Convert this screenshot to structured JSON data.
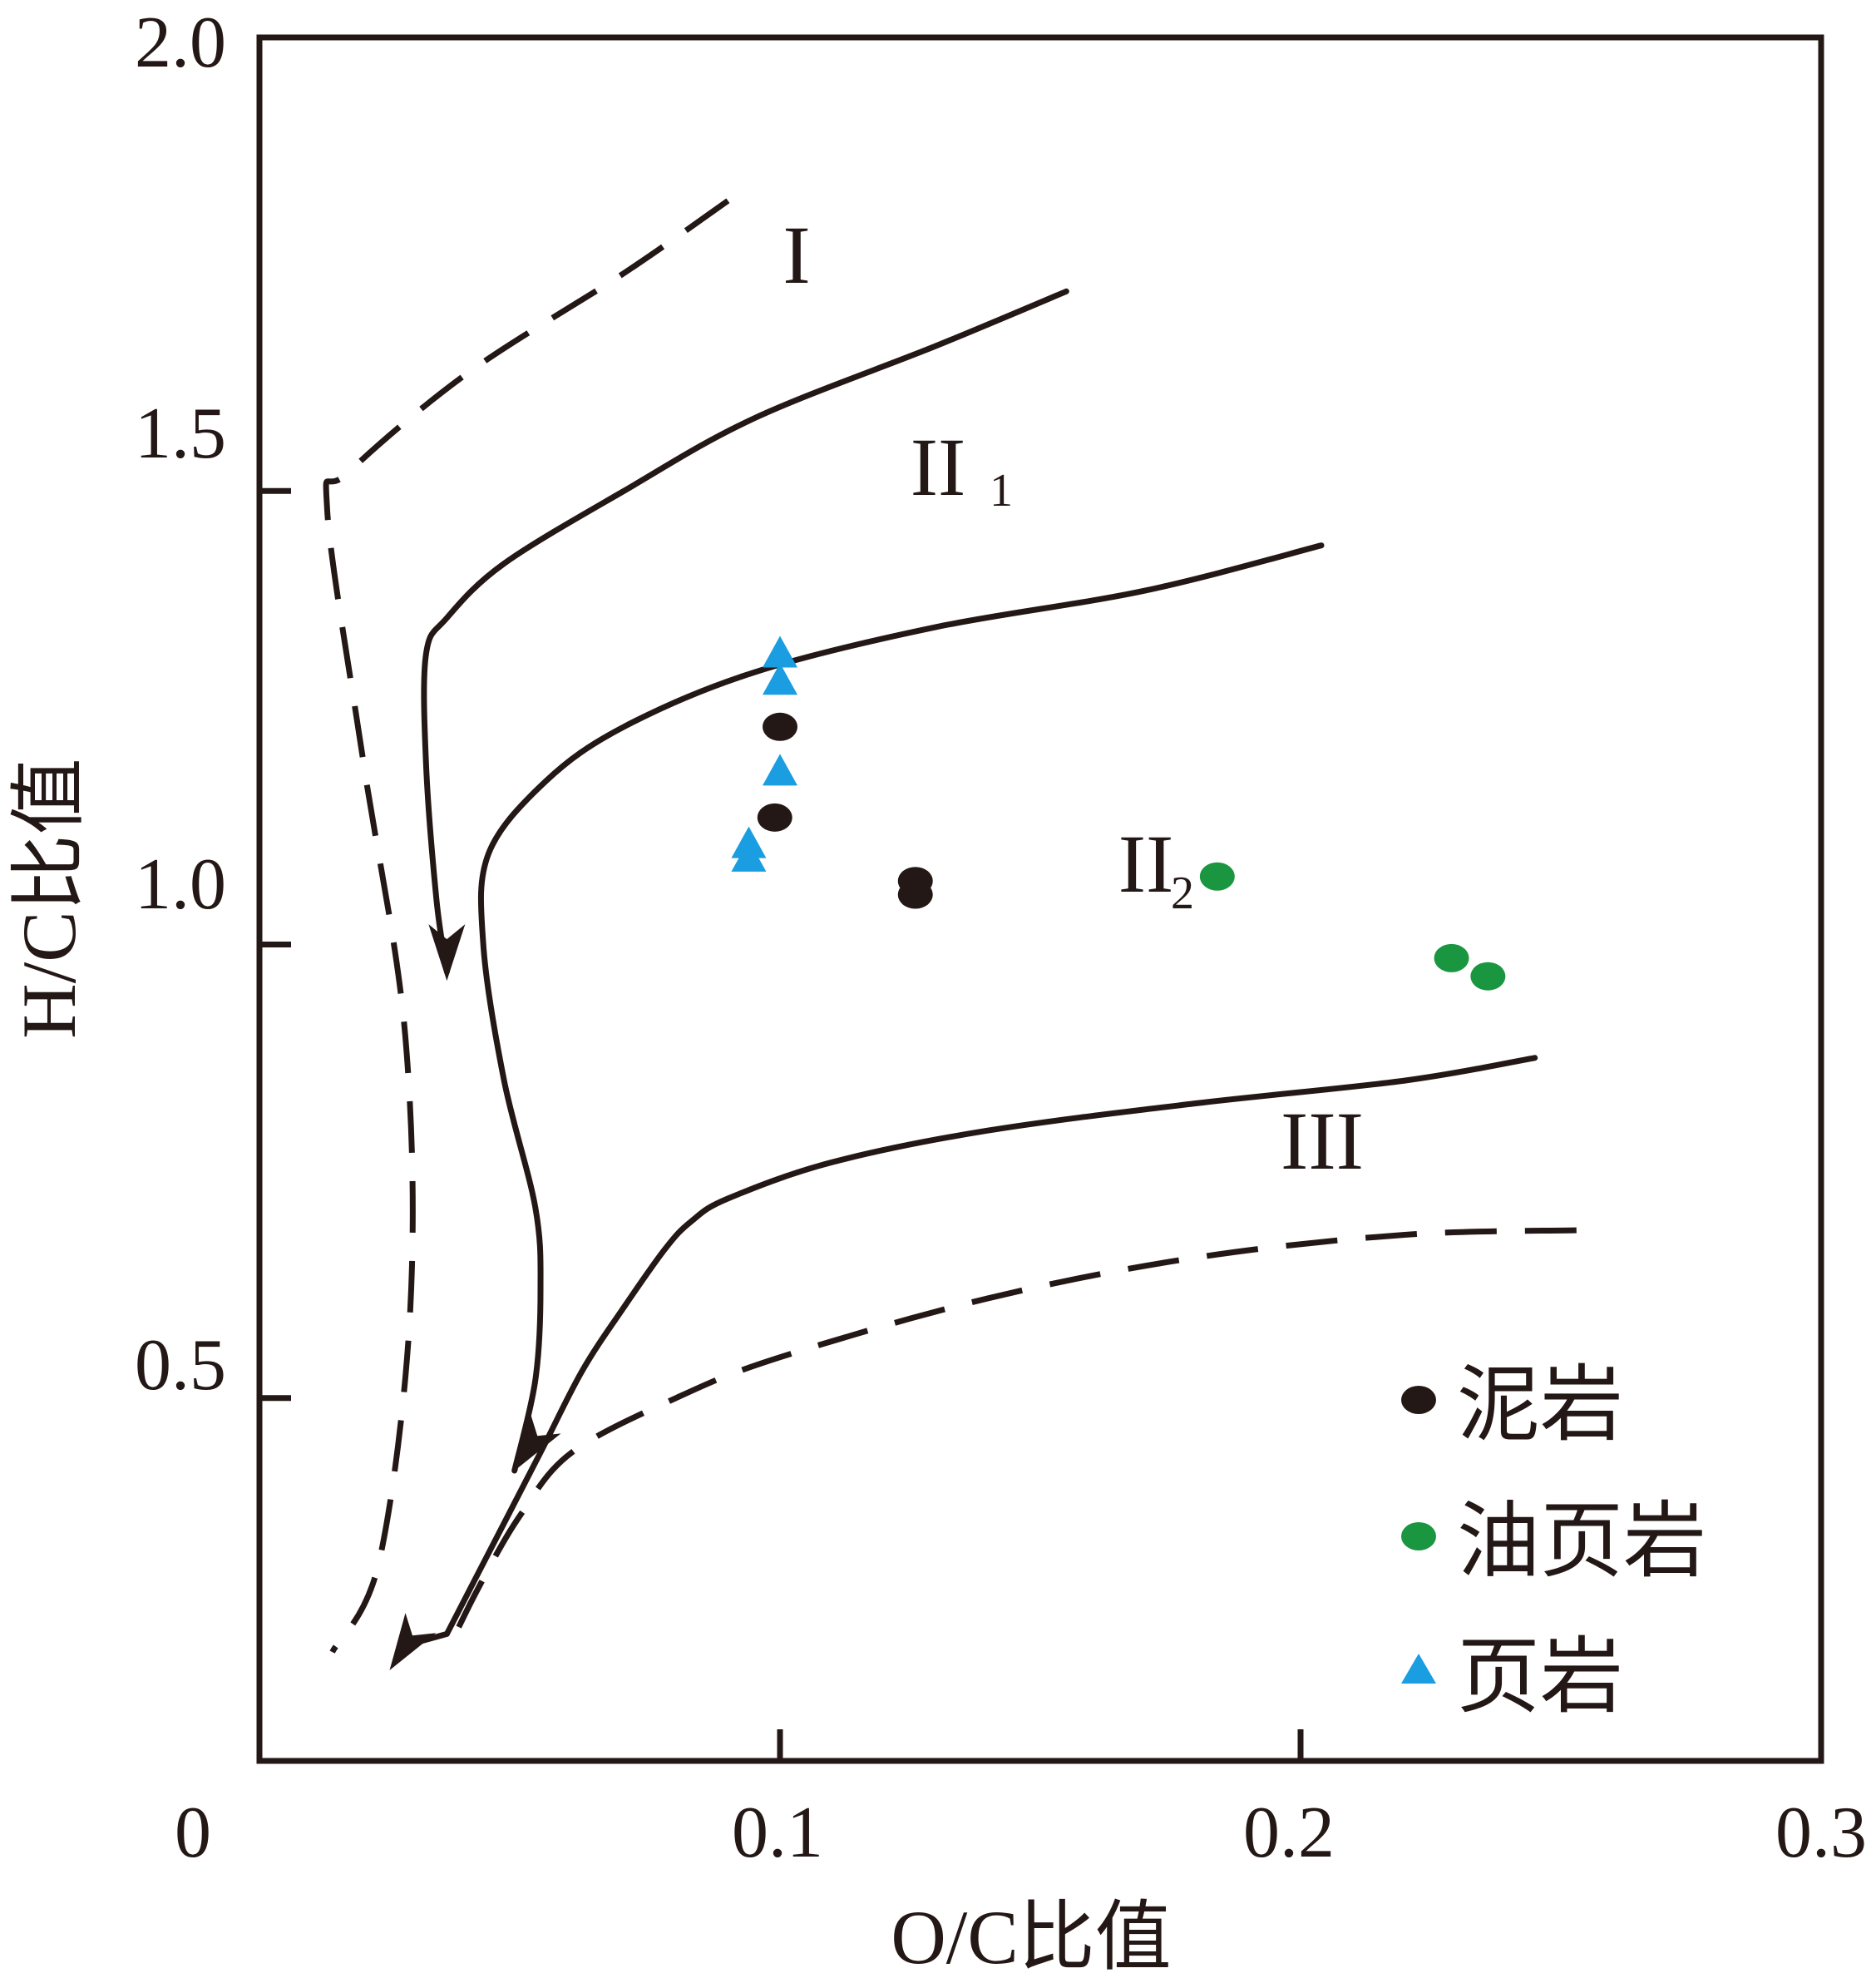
{
  "chart_data": {
    "type": "scatter",
    "xlabel": "O/C比值",
    "ylabel": "H/C比值",
    "xlim": [
      0,
      0.3
    ],
    "ylim": [
      0.1,
      2.0
    ],
    "x_ticks": [
      "0",
      "0.1",
      "0.2",
      "0.3"
    ],
    "y_ticks": [
      "0.5",
      "1.0",
      "1.5",
      "2.0"
    ],
    "region_labels": [
      {
        "name": "I",
        "sub": ""
      },
      {
        "name": "II",
        "sub": "1"
      },
      {
        "name": "II",
        "sub": "2"
      },
      {
        "name": "III",
        "sub": ""
      }
    ],
    "series": [
      {
        "name": "泥岩",
        "marker": "circle",
        "color": "#231815",
        "points": [
          [
            0.1,
            1.24
          ],
          [
            0.099,
            1.14
          ],
          [
            0.126,
            1.07
          ],
          [
            0.126,
            1.055
          ]
        ]
      },
      {
        "name": "油页岩",
        "marker": "circle",
        "color": "#1a9641",
        "points": [
          [
            0.184,
            1.075
          ],
          [
            0.229,
            0.985
          ],
          [
            0.236,
            0.965
          ]
        ]
      },
      {
        "name": "页岩",
        "marker": "triangle",
        "color": "#1a9de1",
        "points": [
          [
            0.1,
            1.32
          ],
          [
            0.1,
            1.29
          ],
          [
            0.1,
            1.19
          ],
          [
            0.094,
            1.11
          ],
          [
            0.094,
            1.095
          ]
        ]
      }
    ],
    "boundary_curves": [
      {
        "style": "dashed",
        "points": [
          [
            0.09,
            1.82
          ],
          [
            0.07,
            1.74
          ],
          [
            0.04,
            1.63
          ],
          [
            0.017,
            1.52
          ],
          [
            0.013,
            1.48
          ],
          [
            0.02,
            1.2
          ],
          [
            0.028,
            0.9
          ],
          [
            0.029,
            0.6
          ],
          [
            0.023,
            0.32
          ],
          [
            0.014,
            0.22
          ]
        ]
      },
      {
        "style": "solid",
        "points": [
          [
            0.155,
            1.72
          ],
          [
            0.13,
            1.66
          ],
          [
            0.095,
            1.58
          ],
          [
            0.07,
            1.5
          ],
          [
            0.047,
            1.42
          ],
          [
            0.036,
            1.36
          ],
          [
            0.032,
            1.32
          ],
          [
            0.032,
            1.2
          ],
          [
            0.034,
            1.05
          ],
          [
            0.036,
            0.97
          ]
        ]
      },
      {
        "style": "solid",
        "points": [
          [
            0.204,
            1.44
          ],
          [
            0.17,
            1.39
          ],
          [
            0.13,
            1.35
          ],
          [
            0.095,
            1.3
          ],
          [
            0.07,
            1.24
          ],
          [
            0.055,
            1.18
          ],
          [
            0.044,
            1.1
          ],
          [
            0.043,
            1.0
          ],
          [
            0.047,
            0.85
          ],
          [
            0.053,
            0.71
          ],
          [
            0.054,
            0.62
          ],
          [
            0.053,
            0.52
          ],
          [
            0.049,
            0.42
          ]
        ]
      },
      {
        "style": "solid",
        "points": [
          [
            0.245,
            0.875
          ],
          [
            0.22,
            0.85
          ],
          [
            0.18,
            0.825
          ],
          [
            0.14,
            0.795
          ],
          [
            0.11,
            0.76
          ],
          [
            0.09,
            0.72
          ],
          [
            0.083,
            0.695
          ],
          [
            0.078,
            0.665
          ],
          [
            0.07,
            0.6
          ],
          [
            0.062,
            0.53
          ],
          [
            0.054,
            0.44
          ],
          [
            0.045,
            0.34
          ],
          [
            0.036,
            0.24
          ]
        ]
      },
      {
        "style": "dashed",
        "points": [
          [
            0.253,
            0.685
          ],
          [
            0.22,
            0.68
          ],
          [
            0.18,
            0.655
          ],
          [
            0.14,
            0.61
          ],
          [
            0.1,
            0.545
          ],
          [
            0.08,
            0.5
          ],
          [
            0.06,
            0.44
          ],
          [
            0.05,
            0.37
          ],
          [
            0.042,
            0.29
          ],
          [
            0.036,
            0.22
          ]
        ]
      }
    ],
    "arrows": [
      {
        "at": [
          0.036,
          0.96
        ],
        "direction": "down"
      },
      {
        "at": [
          0.049,
          0.42
        ],
        "direction": "down-left"
      },
      {
        "at": [
          0.025,
          0.2
        ],
        "direction": "down-left"
      }
    ],
    "legend_position": "bottom-right",
    "grid": false
  }
}
